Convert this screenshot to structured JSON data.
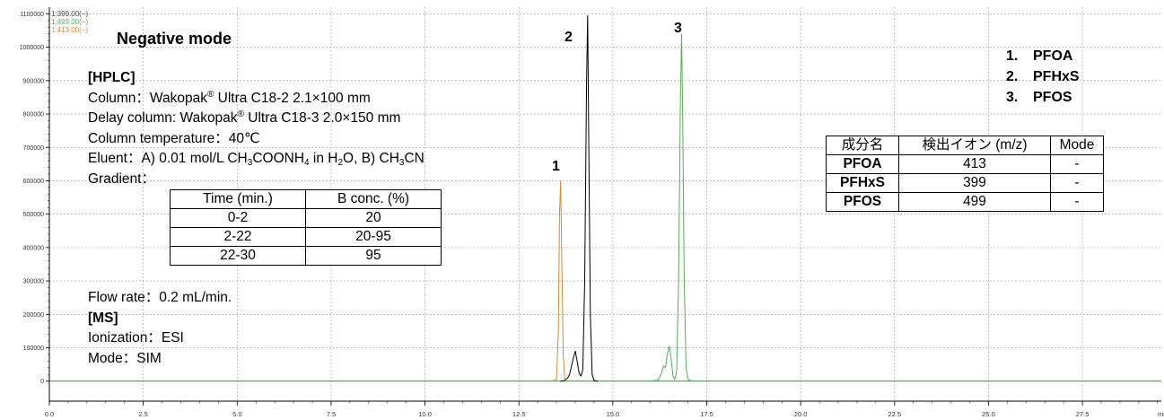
{
  "chart_data": {
    "type": "line",
    "xlim": [
      0,
      29.6
    ],
    "ylim": [
      -60000,
      1120000
    ],
    "x_ticks": [
      0,
      2.5,
      5,
      7.5,
      10,
      12.5,
      15,
      17.5,
      20,
      22.5,
      25,
      27.5
    ],
    "x_tick_labels": [
      "0.0",
      "2.5",
      "5.0",
      "7.5",
      "10.0",
      "12.5",
      "15.0",
      "17.5",
      "20.0",
      "22.5",
      "25.0",
      "27.5"
    ],
    "y_ticks": [
      0,
      100000,
      200000,
      300000,
      400000,
      500000,
      600000,
      700000,
      800000,
      900000,
      1000000,
      1100000
    ],
    "y_tick_labels": [
      "0",
      "100000",
      "200000",
      "300000",
      "400000",
      "500000",
      "600000",
      "700000",
      "800000",
      "900000",
      "1000000",
      "1100000"
    ],
    "xlabel": "mi",
    "grid": true,
    "series": [
      {
        "name": "1:399.00(−)",
        "color": "#000000",
        "x": [
          13.6,
          13.7,
          13.8,
          13.85,
          13.9,
          13.95,
          14.0,
          14.05,
          14.1,
          14.15,
          14.2,
          14.25,
          14.3,
          14.33,
          14.36,
          14.4,
          14.45,
          14.5,
          14.6
        ],
        "y": [
          0,
          1000,
          10000,
          20000,
          45000,
          70000,
          90000,
          60000,
          25000,
          15000,
          35000,
          300000,
          900000,
          1095000,
          700000,
          200000,
          20000,
          2000,
          0
        ]
      },
      {
        "name": "1:499.00(−)",
        "color": "#5aaa5a",
        "x": [
          16.0,
          16.2,
          16.3,
          16.35,
          16.4,
          16.45,
          16.5,
          16.55,
          16.6,
          16.65,
          16.7,
          16.75,
          16.8,
          16.83,
          16.86,
          16.9,
          16.95,
          17.0,
          17.1
        ],
        "y": [
          0,
          3000,
          25000,
          45000,
          40000,
          80000,
          105000,
          70000,
          15000,
          5000,
          30000,
          300000,
          850000,
          1040000,
          800000,
          300000,
          40000,
          5000,
          0
        ]
      },
      {
        "name": "1:413.00(−)",
        "color": "#d08a3a",
        "x": [
          13.4,
          13.5,
          13.55,
          13.58,
          13.61,
          13.64,
          13.68,
          13.72,
          13.8
        ],
        "y": [
          0,
          5000,
          150000,
          500000,
          600000,
          380000,
          80000,
          5000,
          0
        ]
      }
    ]
  },
  "legend_lines": [
    "1:399.00(−)",
    "1:499.00(−)",
    "1:413.00(−)"
  ],
  "title": "Negative mode",
  "hplc_heading": "[HPLC]",
  "column": {
    "prefix": "Column：Wakopak",
    "suffix": " Ultra C18-2   2.1×100 mm",
    "sup": "®"
  },
  "delay_column": {
    "prefix": "Delay column: Wakopak",
    "suffix": " Ultra C18-3   2.0×150 mm",
    "sup": "®"
  },
  "column_temperature": "Column temperature：40℃",
  "eluent": {
    "label": "Eluent：A) 0.01 mol/L CH",
    "p1": "3",
    "t2": "COONH",
    "p2": "4",
    "t3": " in H",
    "p3": "2",
    "t4": "O, B) CH",
    "p4": "3",
    "t5": "CN"
  },
  "gradient_label": "Gradient：",
  "gradient_table": {
    "headers": [
      "Time (min.)",
      "B conc. (%)"
    ],
    "rows": [
      [
        "0-2",
        "20"
      ],
      [
        "2-22",
        "20-95"
      ],
      [
        "22-30",
        "95"
      ]
    ]
  },
  "flow_rate": "Flow rate：0.2 mL/min.",
  "ms_heading": "[MS]",
  "ionization": "Ionization：ESI",
  "mode": "Mode：SIM",
  "peak_labels": [
    "1",
    "2",
    "3"
  ],
  "compound_legend": [
    {
      "num": "1.",
      "name": "PFOA"
    },
    {
      "num": "2.",
      "name": "PFHxS"
    },
    {
      "num": "3.",
      "name": "PFOS"
    }
  ],
  "ion_table": {
    "headers": [
      "成分名",
      "検出イオン (m/z)",
      "Mode"
    ],
    "rows": [
      [
        "PFOA",
        "413",
        "-"
      ],
      [
        "PFHxS",
        "399",
        "-"
      ],
      [
        "PFOS",
        "499",
        "-"
      ]
    ]
  }
}
